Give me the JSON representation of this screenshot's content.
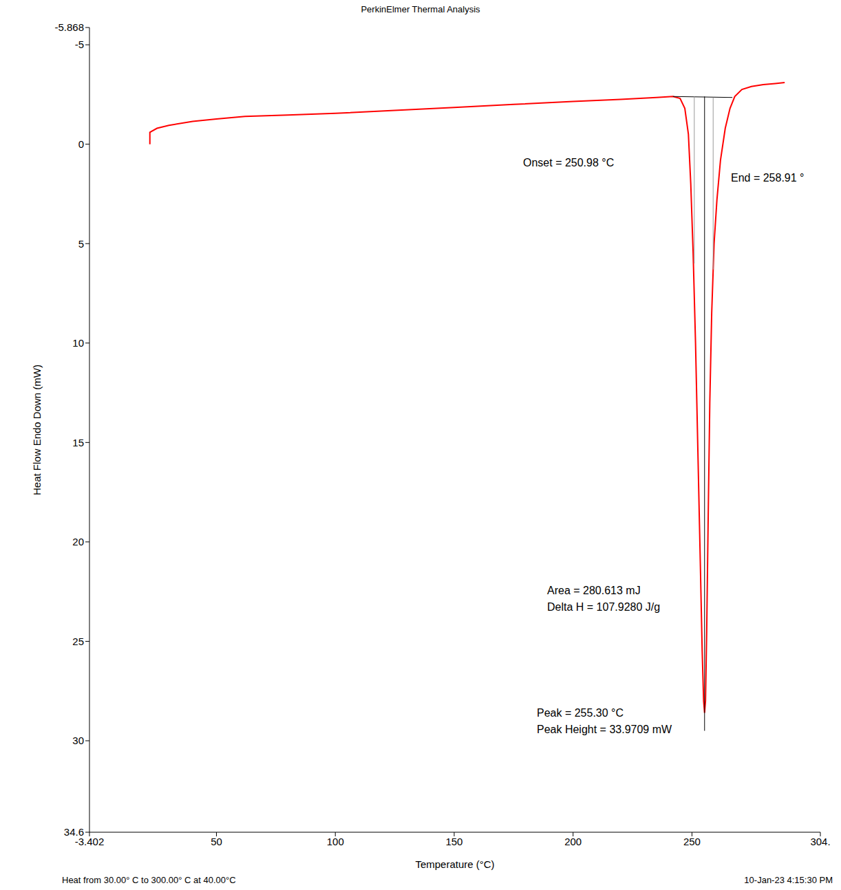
{
  "chart_data": {
    "type": "line",
    "title": "PerkinElmer Thermal Analysis",
    "x_label": "Temperature (°C)",
    "y_label": "Heat Flow Endo Down (mW)",
    "xlim": [
      -3.402,
      304
    ],
    "xticks": [
      -3.402,
      50,
      100,
      150,
      200,
      250,
      {
        "value": 304,
        "label": "304."
      }
    ],
    "ylim": [
      34.6,
      -5.868
    ],
    "yticks": [
      -5.868,
      -5,
      0,
      5,
      10,
      15,
      20,
      25,
      30,
      34.6
    ],
    "grid": false,
    "series": [
      {
        "color": "#ff0000",
        "x": [
          22,
          22,
          25,
          30,
          40,
          50,
          62,
          80,
          100,
          125,
          150,
          175,
          200,
          220,
          235,
          242,
          245,
          247,
          248.5,
          249.5,
          250.5,
          251.5,
          252.5,
          253.5,
          254.3,
          254.9,
          255.3,
          255.7,
          256.2,
          256.8,
          257.5,
          258.3,
          259.3,
          260.5,
          262,
          264,
          266,
          268,
          271,
          275,
          280,
          285,
          289
        ],
        "values": [
          0,
          -0.6,
          -0.8,
          -0.95,
          -1.15,
          -1.27,
          -1.4,
          -1.47,
          -1.55,
          -1.7,
          -1.85,
          -2.0,
          -2.15,
          -2.25,
          -2.35,
          -2.4,
          -2.3,
          -1.8,
          -0.5,
          2,
          5.5,
          10,
          15.5,
          21,
          25.5,
          28,
          28.6,
          28,
          24.5,
          19,
          13,
          8.5,
          5,
          2.8,
          0.8,
          -0.8,
          -1.8,
          -2.4,
          -2.75,
          -2.9,
          -3.0,
          -3.05,
          -3.1
        ]
      },
      {
        "color": "#000000",
        "x": [
          242,
          267
        ],
        "values": [
          -2.4,
          -2.35
        ]
      },
      {
        "color": "#999999",
        "x": [
          250.98,
          250.98
        ],
        "values": [
          -2.4,
          6
        ]
      },
      {
        "color": "#999999",
        "x": [
          258.91,
          258.91
        ],
        "values": [
          -2.35,
          6.3
        ]
      },
      {
        "color": "#000000",
        "x": [
          255.3,
          255.3
        ],
        "values": [
          -2.4,
          29.5
        ]
      }
    ],
    "annotations": [
      "Onset = 250.98 °C",
      "End = 258.91 °",
      "Area = 280.613 mJ",
      "Delta H = 107.9280 J/g",
      "Peak = 255.30 °C",
      "Peak Height = 33.9709 mW"
    ],
    "footer": [
      "Heat from 30.00° C to 300.00° C at 40.00°C",
      "10-Jan-23 4:15:30 PM"
    ]
  }
}
